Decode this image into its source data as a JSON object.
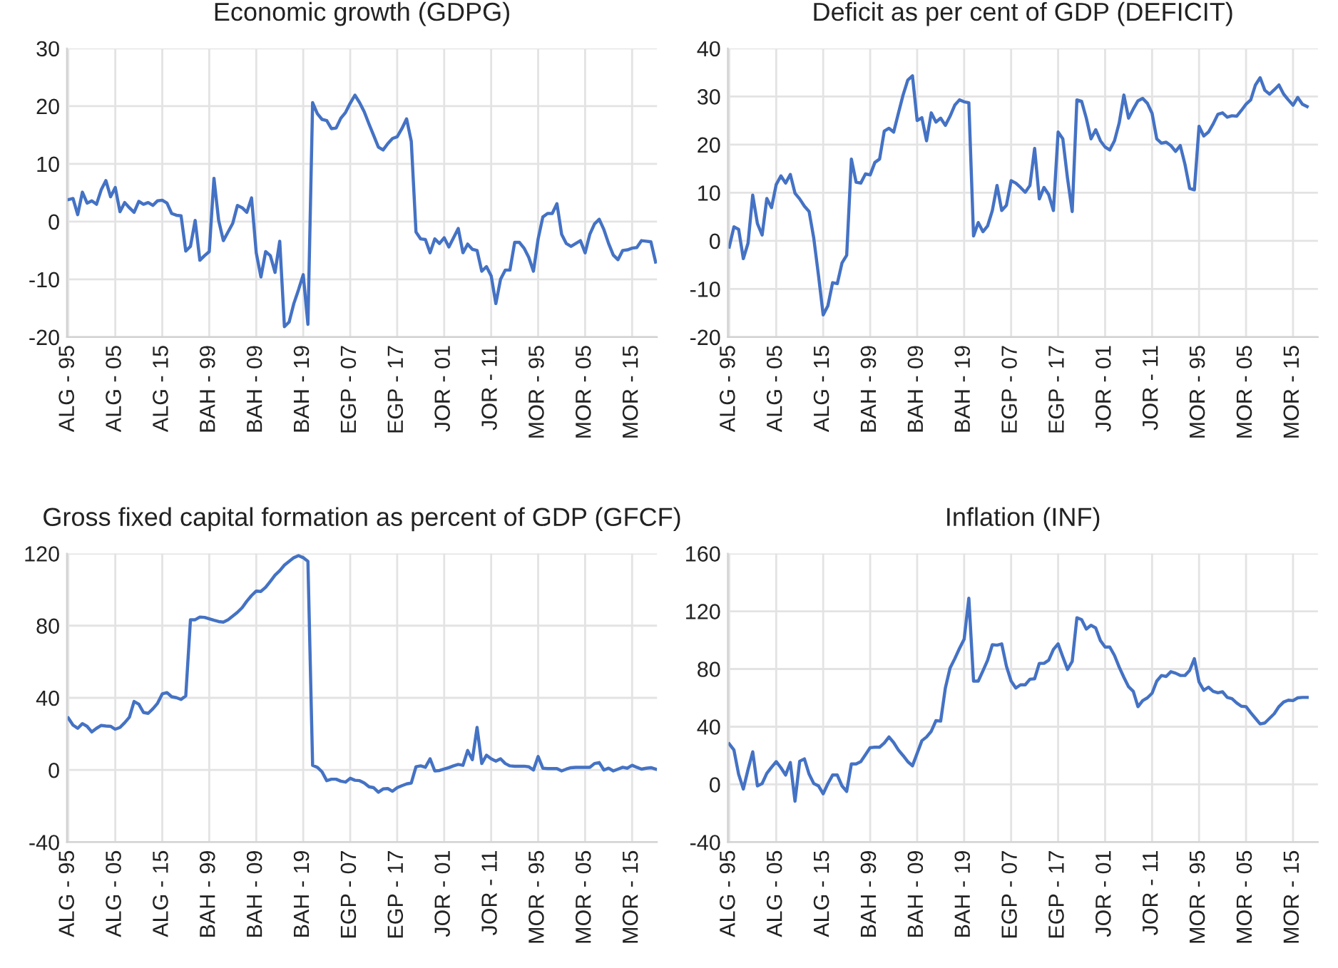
{
  "chart_data": [
    {
      "type": "line",
      "title": "Economic growth (GDPG)",
      "categories": [
        "ALG - 95",
        null,
        null,
        null,
        null,
        null,
        null,
        null,
        null,
        null,
        "ALG - 05",
        null,
        null,
        null,
        null,
        null,
        null,
        null,
        null,
        null,
        "ALG - 15",
        null,
        null,
        null,
        null,
        null,
        null,
        null,
        null,
        null,
        "BAH - 99",
        null,
        null,
        null,
        null,
        null,
        null,
        null,
        null,
        null,
        "BAH - 09",
        null,
        null,
        null,
        null,
        null,
        null,
        null,
        null,
        null,
        "BAH - 19",
        null,
        null,
        null,
        null,
        null,
        null,
        null,
        null,
        null,
        "EGP - 07",
        null,
        null,
        null,
        null,
        null,
        null,
        null,
        null,
        null,
        "EGP - 17",
        null,
        null,
        null,
        null,
        null,
        null,
        null,
        null,
        null,
        "JOR - 01",
        null,
        null,
        null,
        null,
        null,
        null,
        null,
        null,
        null,
        "JOR - 11",
        null,
        null,
        null,
        null,
        null,
        null,
        null,
        null,
        null,
        "MOR - 95",
        null,
        null,
        null,
        null,
        null,
        null,
        null,
        null,
        null,
        "MOR - 05",
        null,
        null,
        null,
        null,
        null,
        null,
        null,
        null,
        null,
        "MOR - 15",
        null,
        null,
        null,
        null,
        null
      ],
      "series": [
        {
          "color": "#4472c4",
          "values": [
            3.8,
            4.0,
            1.2,
            5.1,
            3.2,
            3.6,
            3.0,
            5.5,
            7.1,
            4.3,
            5.9,
            1.7,
            3.3,
            2.4,
            1.6,
            3.5,
            3.0,
            3.3,
            2.8,
            3.6,
            3.7,
            3.2,
            1.4,
            1.1,
            1.0,
            -5.1,
            -4.3,
            0.2,
            -6.7,
            -5.9,
            -5.2,
            7.5,
            0.2,
            -3.3,
            -1.8,
            -0.3,
            2.8,
            2.4,
            1.6,
            4.1,
            -5.4,
            -9.6,
            -5.2,
            -5.9,
            -8.8,
            -3.4,
            -18.2,
            -17.4,
            -14.2,
            -11.8,
            -9.2,
            -17.8,
            20.6,
            18.7,
            17.7,
            17.5,
            16.1,
            16.2,
            17.9,
            18.9,
            20.5,
            21.9,
            20.6,
            19.0,
            16.9,
            14.9,
            12.9,
            12.4,
            13.5,
            14.4,
            14.7,
            16.1,
            17.8,
            13.9,
            -1.8,
            -3.0,
            -3.1,
            -5.4,
            -3.0,
            -3.8,
            -2.8,
            -4.4,
            -2.8,
            -1.2,
            -5.4,
            -3.9,
            -4.8,
            -5.0,
            -8.6,
            -7.8,
            -9.4,
            -14.2,
            -10.0,
            -8.4,
            -8.4,
            -3.6,
            -3.6,
            -4.6,
            -6.2,
            -8.6,
            -3.0,
            0.8,
            1.4,
            1.4,
            3.1,
            -2.2,
            -3.8,
            -4.3,
            -3.8,
            -3.3,
            -5.4,
            -2.2,
            -0.4,
            0.4,
            -1.4,
            -3.8,
            -5.8,
            -6.6,
            -5.0,
            -4.9,
            -4.6,
            -4.5,
            -3.3,
            -3.4,
            -3.5,
            -7.0
          ]
        }
      ],
      "ylim": [
        -20,
        30
      ],
      "yticks": [
        -20,
        -10,
        0,
        10,
        20,
        30
      ],
      "grid": true,
      "marker": "none",
      "line_style": "solid"
    },
    {
      "type": "line",
      "title": "Deficit as per cent of GDP (DEFICIT)",
      "categories": [
        "ALG - 95",
        null,
        null,
        null,
        null,
        null,
        null,
        null,
        null,
        null,
        "ALG - 05",
        null,
        null,
        null,
        null,
        null,
        null,
        null,
        null,
        null,
        "ALG - 15",
        null,
        null,
        null,
        null,
        null,
        null,
        null,
        null,
        null,
        "BAH - 99",
        null,
        null,
        null,
        null,
        null,
        null,
        null,
        null,
        null,
        "BAH - 09",
        null,
        null,
        null,
        null,
        null,
        null,
        null,
        null,
        null,
        "BAH - 19",
        null,
        null,
        null,
        null,
        null,
        null,
        null,
        null,
        null,
        "EGP - 07",
        null,
        null,
        null,
        null,
        null,
        null,
        null,
        null,
        null,
        "EGP - 17",
        null,
        null,
        null,
        null,
        null,
        null,
        null,
        null,
        null,
        "JOR - 01",
        null,
        null,
        null,
        null,
        null,
        null,
        null,
        null,
        null,
        "JOR - 11",
        null,
        null,
        null,
        null,
        null,
        null,
        null,
        null,
        null,
        "MOR - 95",
        null,
        null,
        null,
        null,
        null,
        null,
        null,
        null,
        null,
        "MOR - 05",
        null,
        null,
        null,
        null,
        null,
        null,
        null,
        null,
        null,
        "MOR - 15",
        null,
        null,
        null,
        null,
        null
      ],
      "series": [
        {
          "color": "#4472c4",
          "values": [
            -1.3,
            2.9,
            2.4,
            -3.7,
            -0.5,
            9.5,
            3.6,
            1.2,
            8.8,
            6.9,
            11.7,
            13.5,
            12.0,
            13.8,
            9.9,
            8.7,
            7.2,
            6.1,
            0.5,
            -7.2,
            -15.4,
            -13.5,
            -8.7,
            -8.9,
            -4.6,
            -3.0,
            17.0,
            12.2,
            12.0,
            13.9,
            13.7,
            16.3,
            17.0,
            22.8,
            23.4,
            22.6,
            26.5,
            30.3,
            33.4,
            34.3,
            25.0,
            25.6,
            20.8,
            26.6,
            24.7,
            25.5,
            24.0,
            25.9,
            28.2,
            29.3,
            28.9,
            28.7,
            1.0,
            3.8,
            1.9,
            3.1,
            6.3,
            11.5,
            6.3,
            7.4,
            12.5,
            12.0,
            11.1,
            10.1,
            11.5,
            19.2,
            8.7,
            11.1,
            9.6,
            6.3,
            22.6,
            21.2,
            13.0,
            6.1,
            29.3,
            29.0,
            25.5,
            21.2,
            23.1,
            20.8,
            19.5,
            18.9,
            20.8,
            24.5,
            30.3,
            25.5,
            27.4,
            29.1,
            29.6,
            28.6,
            26.5,
            21.2,
            20.3,
            20.5,
            19.8,
            18.6,
            19.8,
            15.9,
            10.9,
            10.6,
            23.8,
            21.8,
            22.6,
            24.3,
            26.3,
            26.6,
            25.7,
            26.0,
            25.9,
            27.1,
            28.4,
            29.3,
            32.4,
            33.9,
            31.3,
            30.5,
            31.4,
            32.4,
            30.5,
            29.3,
            28.2,
            29.8,
            28.4,
            27.9,
            null,
            null
          ]
        }
      ],
      "ylim": [
        -20,
        40
      ],
      "yticks": [
        -20,
        -10,
        0,
        10,
        20,
        30,
        40
      ],
      "grid": true,
      "marker": "none",
      "line_style": "solid"
    },
    {
      "type": "line",
      "title": "Gross fixed capital formation as percent of GDP (GFCF)",
      "categories": [
        "ALG - 95",
        null,
        null,
        null,
        null,
        null,
        null,
        null,
        null,
        null,
        "ALG - 05",
        null,
        null,
        null,
        null,
        null,
        null,
        null,
        null,
        null,
        "ALG - 15",
        null,
        null,
        null,
        null,
        null,
        null,
        null,
        null,
        null,
        "BAH - 99",
        null,
        null,
        null,
        null,
        null,
        null,
        null,
        null,
        null,
        "BAH - 09",
        null,
        null,
        null,
        null,
        null,
        null,
        null,
        null,
        null,
        "BAH - 19",
        null,
        null,
        null,
        null,
        null,
        null,
        null,
        null,
        null,
        "EGP - 07",
        null,
        null,
        null,
        null,
        null,
        null,
        null,
        null,
        null,
        "EGP - 17",
        null,
        null,
        null,
        null,
        null,
        null,
        null,
        null,
        null,
        "JOR - 01",
        null,
        null,
        null,
        null,
        null,
        null,
        null,
        null,
        null,
        "JOR - 11",
        null,
        null,
        null,
        null,
        null,
        null,
        null,
        null,
        null,
        "MOR - 95",
        null,
        null,
        null,
        null,
        null,
        null,
        null,
        null,
        null,
        "MOR - 05",
        null,
        null,
        null,
        null,
        null,
        null,
        null,
        null,
        null,
        "MOR - 15",
        null,
        null,
        null,
        null,
        null
      ],
      "series": [
        {
          "color": "#4472c4",
          "values": [
            28.8,
            24.9,
            23.1,
            25.7,
            24.2,
            21.1,
            23.1,
            24.7,
            24.4,
            24.2,
            22.6,
            23.6,
            26.2,
            29.3,
            38.0,
            36.5,
            31.9,
            31.4,
            33.9,
            37.0,
            42.2,
            42.9,
            40.6,
            40.1,
            39.1,
            41.1,
            83.3,
            83.3,
            84.8,
            84.6,
            83.8,
            83.0,
            82.3,
            82.0,
            83.3,
            85.3,
            87.4,
            90.0,
            93.6,
            96.7,
            99.2,
            99.0,
            101.3,
            104.6,
            108.0,
            110.5,
            113.6,
            115.7,
            117.7,
            118.8,
            117.7,
            115.7,
            2.6,
            1.5,
            -1.0,
            -5.9,
            -5.1,
            -5.1,
            -6.2,
            -6.7,
            -4.6,
            -5.7,
            -5.9,
            -7.2,
            -9.3,
            -9.8,
            -12.3,
            -10.5,
            -10.3,
            -11.8,
            -9.8,
            -8.7,
            -7.7,
            -7.2,
            1.8,
            2.3,
            1.5,
            6.2,
            -0.5,
            -0.3,
            0.5,
            1.3,
            2.3,
            3.1,
            2.6,
            10.8,
            5.7,
            23.6,
            3.6,
            8.2,
            6.2,
            4.9,
            6.2,
            3.6,
            2.3,
            2.1,
            2.1,
            2.1,
            1.8,
            0,
            7.5,
            1.0,
            0.8,
            0.8,
            0.8,
            -0.5,
            0.5,
            1.3,
            1.5,
            1.5,
            1.5,
            1.5,
            3.6,
            4.1,
            0,
            1.0,
            -0.5,
            0.5,
            1.5,
            1.0,
            2.6,
            1.5,
            0.5,
            1.0,
            1.3,
            0.5
          ]
        }
      ],
      "ylim": [
        -40,
        120
      ],
      "yticks": [
        -40,
        0,
        40,
        80,
        120
      ],
      "grid": true,
      "marker": "none",
      "line_style": "solid"
    },
    {
      "type": "line",
      "title": "Inflation (INF)",
      "categories": [
        "ALG - 95",
        null,
        null,
        null,
        null,
        null,
        null,
        null,
        null,
        null,
        "ALG - 05",
        null,
        null,
        null,
        null,
        null,
        null,
        null,
        null,
        null,
        "ALG - 15",
        null,
        null,
        null,
        null,
        null,
        null,
        null,
        null,
        null,
        "BAH - 99",
        null,
        null,
        null,
        null,
        null,
        null,
        null,
        null,
        null,
        "BAH - 09",
        null,
        null,
        null,
        null,
        null,
        null,
        null,
        null,
        null,
        "BAH - 19",
        null,
        null,
        null,
        null,
        null,
        null,
        null,
        null,
        null,
        "EGP - 07",
        null,
        null,
        null,
        null,
        null,
        null,
        null,
        null,
        null,
        "EGP - 17",
        null,
        null,
        null,
        null,
        null,
        null,
        null,
        null,
        null,
        "JOR - 01",
        null,
        null,
        null,
        null,
        null,
        null,
        null,
        null,
        null,
        "JOR - 11",
        null,
        null,
        null,
        null,
        null,
        null,
        null,
        null,
        null,
        "MOR - 95",
        null,
        null,
        null,
        null,
        null,
        null,
        null,
        null,
        null,
        "MOR - 05",
        null,
        null,
        null,
        null,
        null,
        null,
        null,
        null,
        null,
        "MOR - 15",
        null,
        null,
        null,
        null,
        null
      ],
      "series": [
        {
          "color": "#4472c4",
          "values": [
            28.1,
            23.9,
            7.1,
            -3.2,
            10.3,
            22.6,
            -1.0,
            0.6,
            7.7,
            11.9,
            15.8,
            11.6,
            6.5,
            15.2,
            -11.6,
            16.1,
            17.7,
            7.1,
            0.6,
            -1.0,
            -6.5,
            0.6,
            6.5,
            6.5,
            -1.0,
            -4.8,
            14.2,
            14.2,
            15.8,
            20.6,
            25.5,
            25.8,
            25.8,
            28.7,
            32.9,
            29.0,
            23.9,
            20.0,
            15.8,
            12.9,
            21.6,
            30.3,
            32.9,
            36.8,
            44.2,
            43.9,
            66.8,
            80.6,
            87.1,
            94.2,
            100.6,
            129.0,
            71.6,
            71.6,
            78.7,
            86.1,
            96.8,
            96.5,
            97.4,
            81.9,
            71.6,
            66.8,
            69.0,
            69.0,
            72.9,
            73.2,
            83.9,
            83.9,
            86.1,
            93.5,
            97.4,
            88.4,
            79.7,
            85.2,
            115.5,
            114.2,
            107.7,
            110.3,
            108.4,
            99.7,
            95.2,
            95.2,
            89.4,
            81.3,
            74.2,
            67.7,
            64.5,
            53.9,
            58.1,
            60.0,
            63.2,
            71.6,
            75.5,
            74.8,
            78.1,
            77.1,
            75.5,
            75.5,
            79.0,
            87.1,
            71.0,
            65.2,
            67.4,
            64.5,
            63.5,
            64.2,
            60.3,
            59.4,
            56.5,
            54.2,
            53.9,
            49.7,
            45.8,
            41.9,
            42.6,
            45.8,
            49.0,
            53.9,
            57.1,
            58.4,
            58.1,
            60.0,
            60.3,
            60.3,
            null,
            null
          ]
        }
      ],
      "ylim": [
        -40,
        160
      ],
      "yticks": [
        -40,
        0,
        40,
        80,
        120,
        160
      ],
      "grid": true,
      "marker": "none",
      "line_style": "solid"
    }
  ]
}
